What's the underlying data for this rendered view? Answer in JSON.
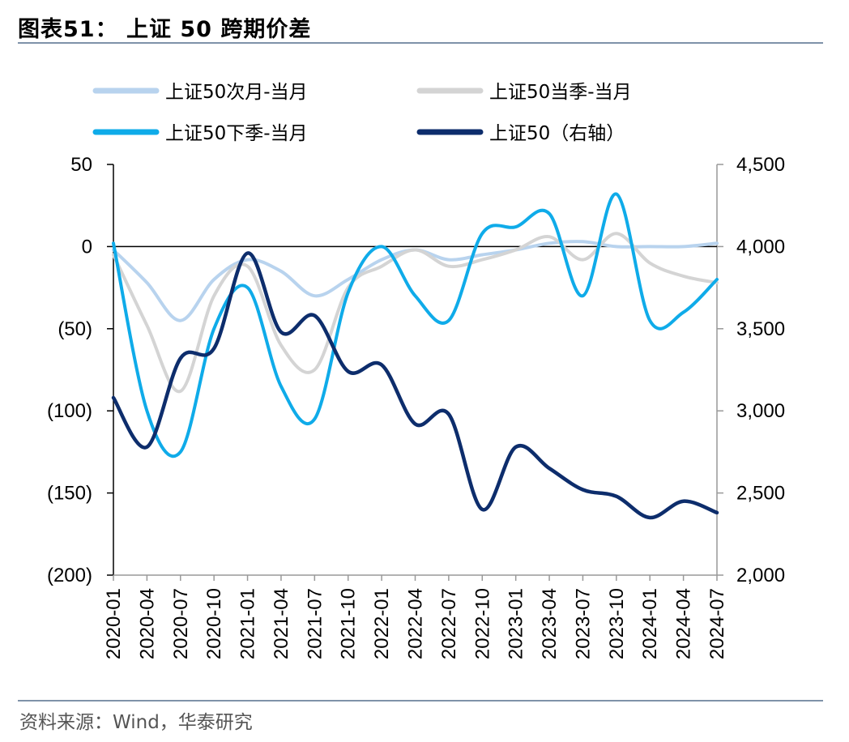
{
  "header": {
    "title": "图表51：  上证 50 跨期价差"
  },
  "footer": {
    "source": "资料来源：Wind，华泰研究"
  },
  "chart_data": {
    "type": "line",
    "title": "上证 50 跨期价差",
    "x": [
      "2020-01",
      "2020-04",
      "2020-07",
      "2020-10",
      "2021-01",
      "2021-04",
      "2021-07",
      "2021-10",
      "2022-01",
      "2022-04",
      "2022-07",
      "2022-10",
      "2023-01",
      "2023-04",
      "2023-07",
      "2023-10",
      "2024-01",
      "2024-04",
      "2024-07"
    ],
    "y_left": {
      "ylim": [
        -200,
        50
      ],
      "ticks": [
        "50",
        "0",
        "(50)",
        "(100)",
        "(150)",
        "(200)"
      ],
      "values": [
        50,
        0,
        -50,
        -100,
        -150,
        -200
      ]
    },
    "y_right": {
      "ylim": [
        2000,
        4500
      ],
      "ticks": [
        "4,500",
        "4,000",
        "3,500",
        "3,000",
        "2,500",
        "2,000"
      ],
      "values": [
        4500,
        4000,
        3500,
        3000,
        2500,
        2000
      ]
    },
    "series": [
      {
        "name": "上证50次月-当月",
        "axis": "left",
        "color": "#b8d3ee",
        "values": [
          -2,
          -22,
          -45,
          -20,
          -8,
          -15,
          -30,
          -20,
          -8,
          -2,
          -8,
          -5,
          -2,
          2,
          3,
          0,
          0,
          0,
          2
        ]
      },
      {
        "name": "上证50当季-当月",
        "axis": "left",
        "color": "#d4d4d4",
        "values": [
          -5,
          -48,
          -88,
          -30,
          -12,
          -60,
          -75,
          -25,
          -12,
          -2,
          -12,
          -8,
          -2,
          6,
          -8,
          8,
          -10,
          -18,
          -22
        ]
      },
      {
        "name": "上证50下季-当月",
        "axis": "left",
        "color": "#0fabe9",
        "values": [
          2,
          -100,
          -125,
          -50,
          -25,
          -85,
          -105,
          -28,
          0,
          -30,
          -45,
          8,
          12,
          20,
          -30,
          32,
          -45,
          -40,
          -20
        ]
      },
      {
        "name": "上证50（右轴）",
        "axis": "right",
        "color": "#0d2d6c",
        "values": [
          3080,
          2780,
          3320,
          3380,
          3960,
          3480,
          3580,
          3240,
          3280,
          2920,
          2980,
          2400,
          2780,
          2650,
          2520,
          2480,
          2350,
          2450,
          2380
        ]
      }
    ],
    "legend": "top"
  }
}
